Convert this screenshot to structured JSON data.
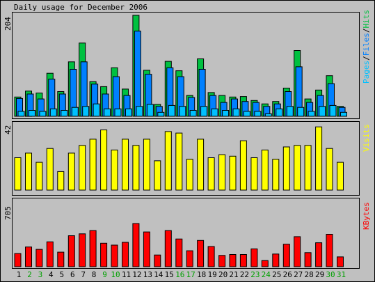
{
  "colors": {
    "background": "#c0c0c0",
    "panel": "#c0c0c0",
    "frame": "#000000",
    "hits": "#00c040",
    "files": "#0080ff",
    "pages": "#00c0ff",
    "visits": "#ffff00",
    "kbytes": "#ff0000",
    "weekday_label": "#000000",
    "weekend_label": "#00a000"
  },
  "chart_data": [
    {
      "type": "bar",
      "title": "Daily usage for December 2006",
      "ymax_label": "204",
      "ylim": [
        0,
        204
      ],
      "legend": [
        {
          "name": "Pages",
          "color": "#00c0ff"
        },
        {
          "name": "Files",
          "color": "#0080ff"
        },
        {
          "name": "Hits",
          "color": "#00c040"
        }
      ],
      "legend_separator": "/",
      "categories": [
        "1",
        "2",
        "3",
        "4",
        "5",
        "6",
        "7",
        "8",
        "9",
        "10",
        "11",
        "12",
        "13",
        "14",
        "15",
        "16",
        "17",
        "18",
        "19",
        "20",
        "21",
        "22",
        "23",
        "24",
        "25",
        "26",
        "27",
        "28",
        "29",
        "30",
        "31"
      ],
      "series": [
        {
          "name": "Hits",
          "values": [
            39,
            51,
            47,
            87,
            50,
            110,
            148,
            70,
            60,
            98,
            55,
            204,
            93,
            24,
            111,
            92,
            42,
            116,
            48,
            42,
            39,
            40,
            32,
            25,
            30,
            57,
            133,
            35,
            53,
            82,
            20
          ]
        },
        {
          "name": "Files",
          "values": [
            36,
            45,
            35,
            75,
            45,
            95,
            110,
            65,
            45,
            80,
            42,
            172,
            85,
            20,
            98,
            80,
            38,
            95,
            42,
            28,
            35,
            30,
            28,
            20,
            25,
            50,
            100,
            28,
            42,
            66,
            18
          ]
        },
        {
          "name": "Pages",
          "values": [
            10,
            12,
            10,
            15,
            12,
            18,
            20,
            25,
            15,
            15,
            15,
            20,
            24,
            8,
            22,
            20,
            12,
            20,
            15,
            12,
            15,
            10,
            10,
            5,
            15,
            20,
            18,
            10,
            20,
            22,
            8
          ]
        }
      ]
    },
    {
      "type": "bar",
      "title": "",
      "ymax_label": "42",
      "ylim": [
        0,
        42
      ],
      "legend": [
        {
          "name": "Visits",
          "color": "#ffff00"
        }
      ],
      "categories": [
        "1",
        "2",
        "3",
        "4",
        "5",
        "6",
        "7",
        "8",
        "9",
        "10",
        "11",
        "12",
        "13",
        "14",
        "15",
        "16",
        "17",
        "18",
        "19",
        "20",
        "21",
        "22",
        "23",
        "24",
        "25",
        "26",
        "27",
        "28",
        "29",
        "30",
        "31"
      ],
      "series": [
        {
          "name": "Visits",
          "values": [
            21,
            24,
            18,
            27,
            12,
            24,
            29,
            33,
            39,
            26,
            33,
            29,
            33,
            19,
            38,
            37,
            20,
            33,
            21,
            23,
            22,
            32,
            21,
            26,
            20,
            28,
            29,
            29,
            41,
            27,
            18
          ]
        }
      ]
    },
    {
      "type": "bar",
      "title": "",
      "ymax_label": "705",
      "ylim": [
        0,
        705
      ],
      "legend": [
        {
          "name": "KBytes",
          "color": "#ff0000"
        }
      ],
      "categories": [
        "1",
        "2",
        "3",
        "4",
        "5",
        "6",
        "7",
        "8",
        "9",
        "10",
        "11",
        "12",
        "13",
        "14",
        "15",
        "16",
        "17",
        "18",
        "19",
        "20",
        "21",
        "22",
        "23",
        "24",
        "25",
        "26",
        "27",
        "28",
        "29",
        "30",
        "31"
      ],
      "series": [
        {
          "name": "KBytes",
          "values": [
            140,
            210,
            185,
            265,
            155,
            330,
            350,
            385,
            250,
            230,
            260,
            460,
            370,
            125,
            385,
            295,
            170,
            280,
            215,
            120,
            130,
            130,
            190,
            65,
            135,
            240,
            320,
            150,
            255,
            345,
            105
          ]
        }
      ]
    }
  ],
  "x_axis": {
    "labels": [
      "1",
      "2",
      "3",
      "4",
      "5",
      "6",
      "7",
      "8",
      "9",
      "10",
      "11",
      "12",
      "13",
      "14",
      "15",
      "16",
      "17",
      "18",
      "19",
      "20",
      "21",
      "22",
      "23",
      "24",
      "25",
      "26",
      "27",
      "28",
      "29",
      "30",
      "31"
    ],
    "weekend_days": [
      "2",
      "3",
      "9",
      "10",
      "16",
      "17",
      "23",
      "24",
      "30",
      "31"
    ]
  }
}
